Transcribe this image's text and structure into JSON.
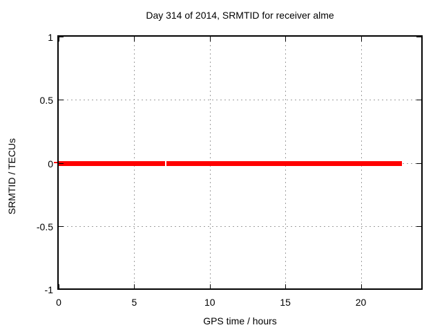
{
  "chart_data": {
    "type": "line",
    "title": "Day 314 of 2014, SRMTID for receiver alme",
    "xlabel": "GPS time / hours",
    "ylabel": "SRMTID / TECUs",
    "xlim": [
      0,
      24
    ],
    "ylim": [
      -1,
      1
    ],
    "xticks": [
      0,
      5,
      10,
      15,
      20
    ],
    "yticks": [
      1,
      0.5,
      0,
      -0.5,
      -1
    ],
    "xtick_labels": [
      "0",
      "5",
      "10",
      "15",
      "20"
    ],
    "ytick_labels": [
      "1",
      "0.5",
      "0",
      "-0.5",
      "-1"
    ],
    "grid": "dotted, at every labeled tick",
    "legend": "none",
    "series": [
      {
        "name": "SRMTID",
        "color": "#ff0000",
        "style": "thick horizontal line at y=0 with small data gap near x=7.1",
        "segments": [
          {
            "x_start": 0,
            "x_end": 7.05,
            "y": 0
          },
          {
            "x_start": 7.15,
            "x_end": 22.72,
            "y": 0
          }
        ]
      }
    ],
    "colors": {
      "background": "#ffffff",
      "border": "#000000",
      "grid": "#9e9e9e",
      "series": "#ff0000"
    }
  }
}
